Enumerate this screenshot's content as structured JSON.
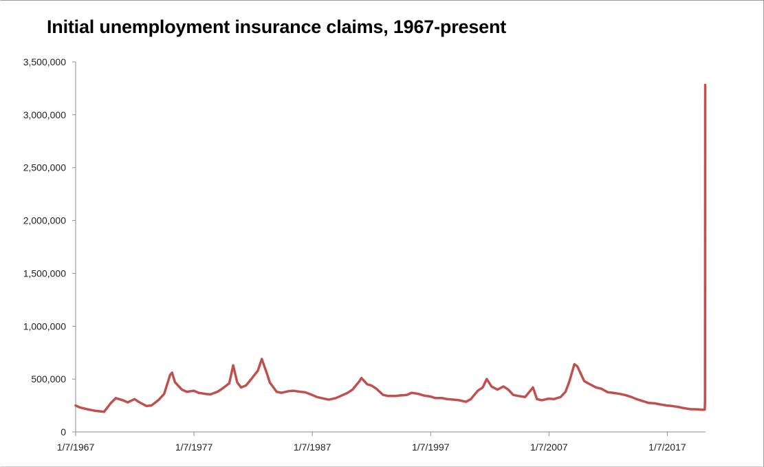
{
  "chart_data": {
    "type": "line",
    "title": "Initial unemployment insurance claims, 1967-present",
    "xlabel": "",
    "ylabel": "",
    "ylim": [
      0,
      3500000
    ],
    "xlim": [
      "1967-01-07",
      "2020-04-01"
    ],
    "y_tick_labels": [
      "0",
      "500,000",
      "1,000,000",
      "1,500,000",
      "2,000,000",
      "2,500,000",
      "3,000,000",
      "3,500,000"
    ],
    "x_tick_labels": [
      "1/7/1967",
      "1/7/1977",
      "1/7/1987",
      "1/7/1997",
      "1/7/2007",
      "1/7/2017"
    ],
    "grid": false,
    "legend": "none",
    "colors": {
      "line": "#c0504d",
      "axis": "#8c8c8c"
    },
    "series": [
      {
        "name": "",
        "x": [
          "1967-01-07",
          "1967-06-01",
          "1968-01-01",
          "1968-09-01",
          "1969-06-01",
          "1970-01-01",
          "1970-06-01",
          "1971-01-01",
          "1971-06-01",
          "1972-01-01",
          "1972-06-01",
          "1973-01-01",
          "1973-06-01",
          "1974-01-01",
          "1974-07-01",
          "1975-01-01",
          "1975-03-01",
          "1975-06-01",
          "1976-01-01",
          "1976-06-01",
          "1977-01-01",
          "1977-06-01",
          "1978-01-01",
          "1978-06-01",
          "1979-01-01",
          "1979-06-01",
          "1980-01-01",
          "1980-05-01",
          "1980-09-01",
          "1981-01-01",
          "1981-06-01",
          "1982-01-01",
          "1982-06-01",
          "1982-10-01",
          "1983-03-01",
          "1983-06-01",
          "1984-01-01",
          "1984-06-01",
          "1985-01-01",
          "1985-06-01",
          "1986-01-01",
          "1986-06-01",
          "1987-01-01",
          "1987-06-01",
          "1988-01-01",
          "1988-06-01",
          "1989-01-01",
          "1989-06-01",
          "1990-01-01",
          "1990-06-01",
          "1991-01-01",
          "1991-03-01",
          "1991-09-01",
          "1992-01-01",
          "1992-06-01",
          "1993-01-01",
          "1993-06-01",
          "1994-01-01",
          "1994-06-01",
          "1995-01-01",
          "1995-06-01",
          "1996-01-01",
          "1996-06-01",
          "1997-01-01",
          "1997-06-01",
          "1998-01-01",
          "1998-06-01",
          "1999-01-01",
          "1999-06-01",
          "2000-01-01",
          "2000-06-01",
          "2001-01-01",
          "2001-06-01",
          "2001-10-01",
          "2002-03-01",
          "2002-09-01",
          "2003-03-01",
          "2003-08-01",
          "2004-01-01",
          "2004-06-01",
          "2005-01-01",
          "2005-09-01",
          "2006-01-01",
          "2006-06-01",
          "2007-01-01",
          "2007-06-01",
          "2008-01-01",
          "2008-06-01",
          "2008-10-01",
          "2009-03-01",
          "2009-06-01",
          "2009-10-01",
          "2010-01-01",
          "2010-06-01",
          "2011-01-01",
          "2011-06-01",
          "2012-01-01",
          "2012-06-01",
          "2013-01-01",
          "2013-06-01",
          "2014-01-01",
          "2014-06-01",
          "2015-01-01",
          "2015-06-01",
          "2016-01-01",
          "2016-06-01",
          "2017-01-01",
          "2017-06-01",
          "2018-01-01",
          "2018-06-01",
          "2019-01-01",
          "2019-06-01",
          "2020-01-01",
          "2020-03-07",
          "2020-03-14",
          "2020-03-21"
        ],
        "values": [
          250000,
          230000,
          215000,
          200000,
          190000,
          275000,
          320000,
          300000,
          280000,
          310000,
          280000,
          245000,
          250000,
          300000,
          360000,
          540000,
          560000,
          470000,
          400000,
          380000,
          390000,
          370000,
          360000,
          355000,
          380000,
          410000,
          460000,
          630000,
          470000,
          420000,
          440000,
          520000,
          580000,
          690000,
          560000,
          470000,
          380000,
          370000,
          385000,
          390000,
          380000,
          375000,
          350000,
          330000,
          315000,
          305000,
          320000,
          340000,
          370000,
          400000,
          480000,
          510000,
          450000,
          440000,
          410000,
          350000,
          340000,
          340000,
          345000,
          350000,
          370000,
          360000,
          345000,
          335000,
          320000,
          320000,
          310000,
          305000,
          300000,
          285000,
          310000,
          390000,
          420000,
          500000,
          430000,
          400000,
          430000,
          400000,
          350000,
          340000,
          330000,
          420000,
          310000,
          300000,
          315000,
          310000,
          330000,
          380000,
          480000,
          640000,
          620000,
          540000,
          480000,
          455000,
          420000,
          410000,
          375000,
          370000,
          360000,
          350000,
          330000,
          310000,
          290000,
          275000,
          270000,
          260000,
          250000,
          245000,
          235000,
          225000,
          215000,
          215000,
          210000,
          211000,
          281000,
          3283000
        ]
      }
    ]
  }
}
